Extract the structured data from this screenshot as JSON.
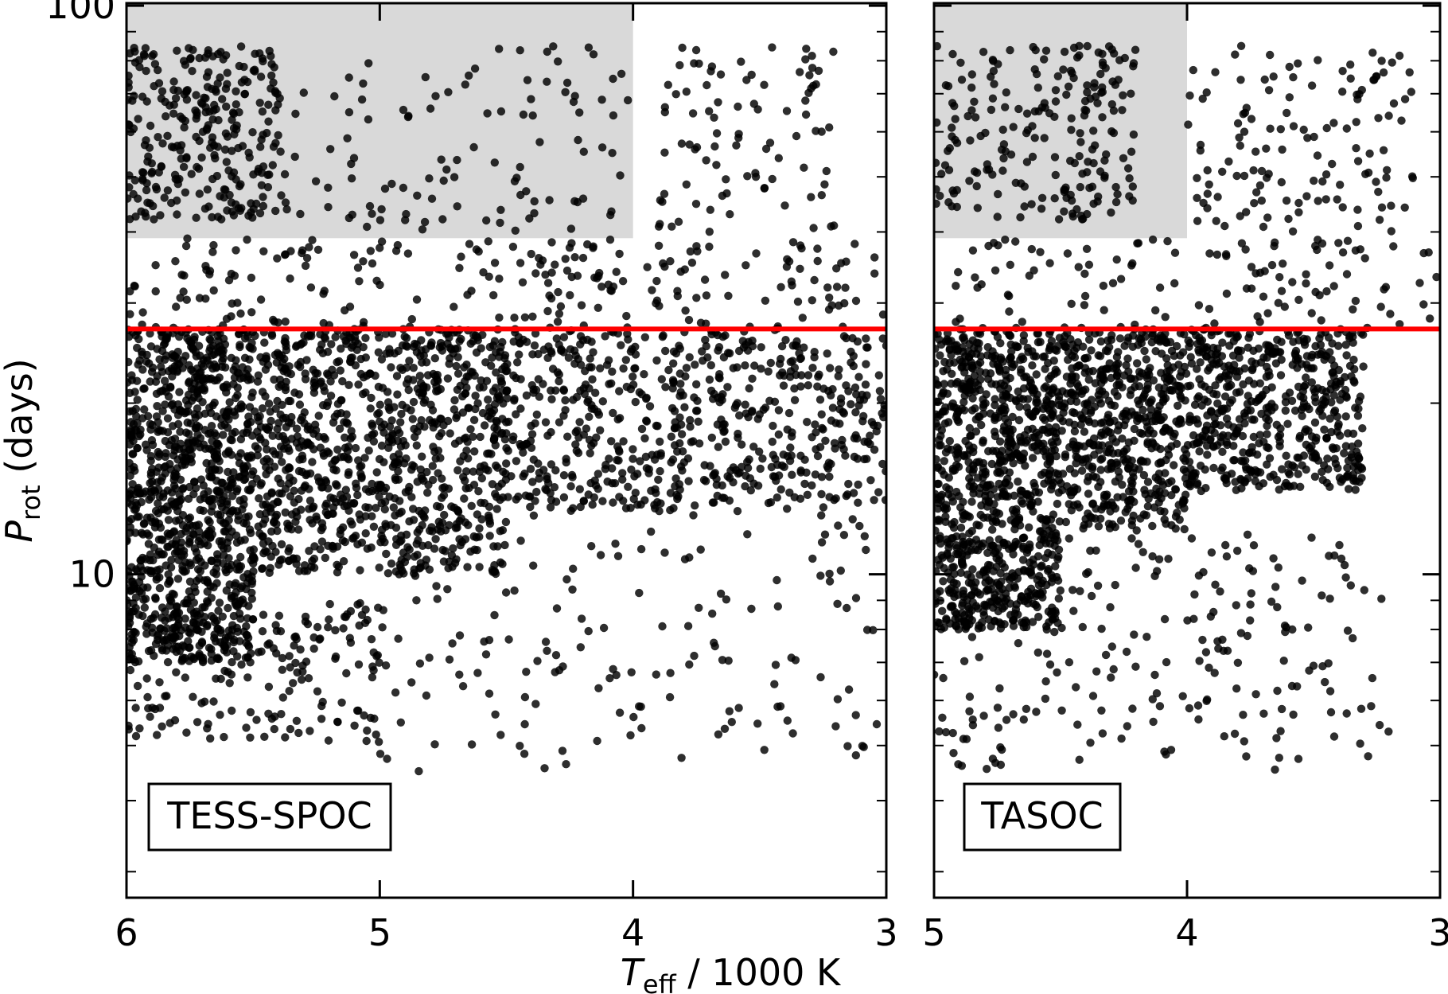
{
  "chart_data": [
    {
      "type": "scatter",
      "panel_label": "TESS-SPOC",
      "xlim": [
        6,
        3
      ],
      "ylim": [
        2.7,
        101
      ],
      "y_scale": "log",
      "xticks": [
        6,
        5,
        4,
        3
      ],
      "xtick_labels": [
        "6",
        "5",
        "4",
        "3"
      ],
      "yticks": [
        10,
        100
      ],
      "ytick_labels": [
        "10",
        "100"
      ],
      "shaded_region": {
        "x": [
          6,
          4
        ],
        "y": [
          39,
          101
        ],
        "color": "#d9d9d9"
      },
      "reference_line": {
        "y": 27,
        "color": "#ff0000"
      },
      "marker_color": "#000000",
      "point_density_bands": [
        {
          "x": [
            6.0,
            5.5
          ],
          "y": [
            7,
            27
          ],
          "n": 1000
        },
        {
          "x": [
            5.5,
            4.5
          ],
          "y": [
            10,
            27
          ],
          "n": 950
        },
        {
          "x": [
            4.5,
            3.0
          ],
          "y": [
            13,
            27
          ],
          "n": 650
        },
        {
          "x": [
            6.0,
            5.0
          ],
          "y": [
            5,
            9
          ],
          "n": 180
        },
        {
          "x": [
            5.0,
            3.0
          ],
          "y": [
            4.5,
            13
          ],
          "n": 160
        },
        {
          "x": [
            6.0,
            3.0
          ],
          "y": [
            27,
            39
          ],
          "n": 220
        },
        {
          "x": [
            6.0,
            5.4
          ],
          "y": [
            42,
            85
          ],
          "n": 280
        },
        {
          "x": [
            5.4,
            4.0
          ],
          "y": [
            40,
            85
          ],
          "n": 110
        },
        {
          "x": [
            3.9,
            3.2
          ],
          "y": [
            40,
            85
          ],
          "n": 90
        }
      ]
    },
    {
      "type": "scatter",
      "panel_label": "TASOC",
      "xlim": [
        5,
        3
      ],
      "ylim": [
        2.7,
        101
      ],
      "y_scale": "log",
      "xticks": [
        5,
        4,
        3
      ],
      "xtick_labels": [
        "5",
        "4",
        "3"
      ],
      "yticks": [
        10,
        100
      ],
      "ytick_labels": [
        "",
        ""
      ],
      "shaded_region": {
        "x": [
          5,
          4
        ],
        "y": [
          39,
          101
        ],
        "color": "#d9d9d9"
      },
      "reference_line": {
        "y": 27,
        "color": "#ff0000"
      },
      "marker_color": "#000000",
      "point_density_bands": [
        {
          "x": [
            5.0,
            4.5
          ],
          "y": [
            8,
            27
          ],
          "n": 900
        },
        {
          "x": [
            4.5,
            4.0
          ],
          "y": [
            12,
            27
          ],
          "n": 520
        },
        {
          "x": [
            4.0,
            3.3
          ],
          "y": [
            14,
            27
          ],
          "n": 520
        },
        {
          "x": [
            5.0,
            3.2
          ],
          "y": [
            4.5,
            12
          ],
          "n": 230
        },
        {
          "x": [
            5.0,
            3.0
          ],
          "y": [
            27,
            39
          ],
          "n": 120
        },
        {
          "x": [
            5.0,
            4.2
          ],
          "y": [
            42,
            85
          ],
          "n": 210
        },
        {
          "x": [
            4.0,
            3.1
          ],
          "y": [
            40,
            85
          ],
          "n": 130
        }
      ]
    }
  ],
  "ylabel": {
    "main": "P",
    "sub": "rot",
    "rest": " (days)"
  },
  "xlabel": {
    "main": "T",
    "sub": "eff",
    "rest": " / 1000 K"
  }
}
